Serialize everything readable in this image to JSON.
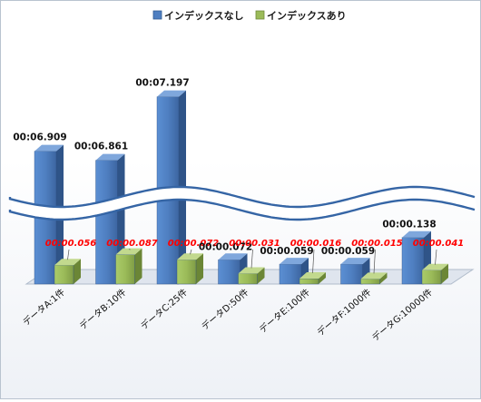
{
  "chart_data": {
    "type": "bar",
    "categories": [
      "データA:1件",
      "データB:10件",
      "データC:25件",
      "データD:50件",
      "データE:100件",
      "データF:1000件",
      "データG:10000件"
    ],
    "series": [
      {
        "name": "インデックスなし",
        "color": "#4f7fc1",
        "values": [
          6.909,
          6.861,
          7.197,
          0.072,
          0.059,
          0.059,
          0.138
        ],
        "labels": [
          "00:06.909",
          "00:06.861",
          "00:07.197",
          "00:00.072",
          "00:00.059",
          "00:00.059",
          "00:00.138"
        ]
      },
      {
        "name": "インデックスあり",
        "color": "#9bbb59",
        "values": [
          0.056,
          0.087,
          0.072,
          0.031,
          0.016,
          0.015,
          0.041
        ],
        "labels": [
          "00:00.056",
          "00:00.087",
          "00:00.072",
          "00:00.031",
          "00:00.016",
          "00:00.015",
          "00:00.041"
        ]
      }
    ],
    "label_color_series2": "#ff0000",
    "y_axis_break": true,
    "legend_position": "top",
    "grid": false
  }
}
